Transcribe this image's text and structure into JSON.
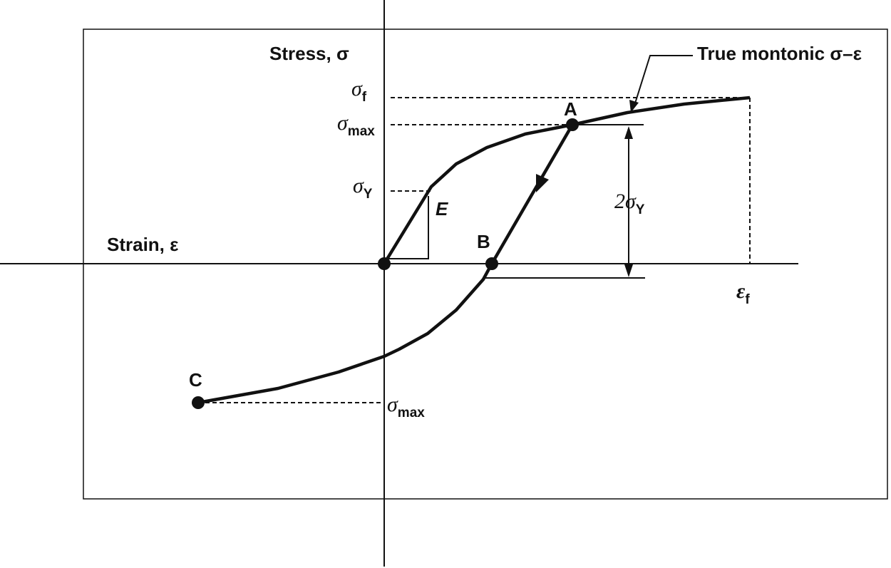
{
  "axes": {
    "y_label": "Stress, σ",
    "x_label": "Strain, ε"
  },
  "annotation": "True montonic σ–ε",
  "points": [
    {
      "label": "A"
    },
    {
      "label": "B"
    },
    {
      "label": "C"
    }
  ],
  "slope_label": "E",
  "levels": [
    {
      "symbol": "σ",
      "subscript": "f"
    },
    {
      "symbol": "σ",
      "subscript": "max"
    },
    {
      "symbol": "σ",
      "subscript": "Y"
    },
    {
      "symbol": "σ",
      "subscript": "max"
    }
  ],
  "range_label": {
    "symbol": "2σ",
    "subscript": "Y"
  },
  "strain_label": {
    "symbol": "ε",
    "subscript": "f"
  }
}
